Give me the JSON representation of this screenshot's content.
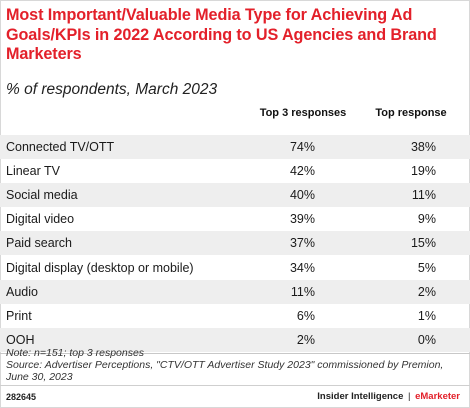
{
  "chart_data": {
    "type": "table",
    "title": "Most Important/Valuable Media Type for Achieving Ad Goals/KPIs in 2022 According to US Agencies and Brand Marketers",
    "subtitle": "% of respondents, March 2023",
    "columns": [
      "Top 3 responses",
      "Top response"
    ],
    "rows": [
      {
        "label": "Connected TV/OTT",
        "values": [
          "74%",
          "38%"
        ]
      },
      {
        "label": "Linear TV",
        "values": [
          "42%",
          "19%"
        ]
      },
      {
        "label": "Social media",
        "values": [
          "40%",
          "11%"
        ]
      },
      {
        "label": "Digital video",
        "values": [
          "39%",
          "9%"
        ]
      },
      {
        "label": "Paid search",
        "values": [
          "37%",
          "15%"
        ]
      },
      {
        "label": "Digital display (desktop or mobile)",
        "values": [
          "34%",
          "5%"
        ]
      },
      {
        "label": "Audio",
        "values": [
          "11%",
          "2%"
        ]
      },
      {
        "label": "Print",
        "values": [
          "6%",
          "1%"
        ]
      },
      {
        "label": "OOH",
        "values": [
          "2%",
          "0%"
        ]
      }
    ]
  },
  "notes": {
    "line1": "Note: n=151; top 3 responses",
    "line2": "Source: Advertiser Perceptions, \"CTV/OTT Advertiser Study 2023\" commissioned by Premion, June 30, 2023"
  },
  "footer": {
    "chart_id": "282645",
    "brand_left": "Insider Intelligence",
    "brand_sep": "|",
    "brand_right": "eMarketer"
  },
  "colors": {
    "accent": "#e3202a",
    "row_shade": "#eeeeee"
  }
}
